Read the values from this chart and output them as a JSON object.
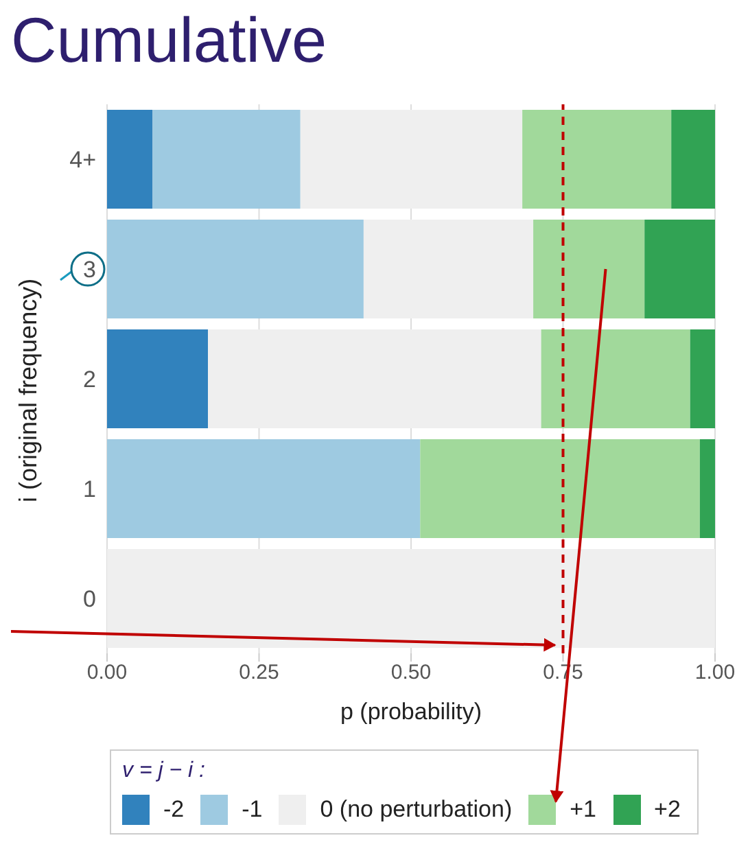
{
  "chart_data": {
    "type": "bar",
    "title": "Cumulative",
    "orientation": "horizontal",
    "stacked": true,
    "xlabel": "p (probability)",
    "ylabel": "i (original frequency)",
    "legend_title": "v = j − i :",
    "categories": [
      "4+",
      "3",
      "2",
      "1",
      "0"
    ],
    "series": [
      {
        "name": "-2",
        "color": "#3182bd",
        "values": [
          0.075,
          0,
          0.166,
          0,
          0
        ]
      },
      {
        "name": "-1",
        "color": "#9ecae1",
        "values": [
          0.243,
          0.422,
          0,
          0.515,
          0
        ]
      },
      {
        "name": "0 (no perturbation)",
        "color": "#efefef",
        "values": [
          0.365,
          0.279,
          0.548,
          0,
          1
        ]
      },
      {
        "name": "+1",
        "color": "#a1d99b",
        "values": [
          0.245,
          0.183,
          0.245,
          0.46,
          0
        ]
      },
      {
        "name": "+2",
        "color": "#31a354",
        "values": [
          0.072,
          0.116,
          0.041,
          0.025,
          0
        ]
      }
    ],
    "xlim": [
      0,
      1
    ],
    "xticks": [
      {
        "value": 0,
        "label": "0.00"
      },
      {
        "value": 0.25,
        "label": "0.25"
      },
      {
        "value": 0.5,
        "label": "0.50"
      },
      {
        "value": 0.75,
        "label": "0.75"
      },
      {
        "value": 1,
        "label": "1.00"
      }
    ],
    "grid": "x",
    "legend": "bottom",
    "ref_lines": [
      {
        "axis": "x",
        "value": 0.75,
        "color": "#c00000",
        "line_style": "dashed"
      }
    ]
  }
}
